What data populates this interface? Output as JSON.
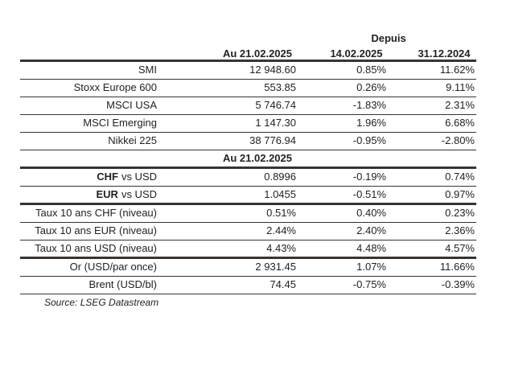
{
  "header": {
    "depuis": "Depuis",
    "columns": [
      "Au 21.02.2025",
      "14.02.2025",
      "31.12.2024"
    ]
  },
  "sections": [
    {
      "rows": [
        {
          "label": "SMI",
          "values": [
            "12 948.60",
            "0.85%",
            "11.62%"
          ]
        },
        {
          "label": "Stoxx Europe 600",
          "values": [
            "553.85",
            "0.26%",
            "9.11%"
          ]
        },
        {
          "label": "MSCI USA",
          "values": [
            "5 746.74",
            "-1.83%",
            "2.31%"
          ]
        },
        {
          "label": "MSCI Emerging",
          "values": [
            "1 147.30",
            "1.96%",
            "6.68%"
          ]
        },
        {
          "label": "Nikkei 225",
          "values": [
            "38 776.94",
            "-0.95%",
            "-2.80%"
          ]
        }
      ]
    },
    {
      "subheader": "Au 21.02.2025",
      "rows": [
        {
          "label_bold": "CHF",
          "label": "vs USD",
          "values": [
            "0.8996",
            "-0.19%",
            "0.74%"
          ]
        },
        {
          "label_bold": "EUR",
          "label": "vs USD",
          "values": [
            "1.0455",
            "-0.51%",
            "0.97%"
          ]
        }
      ]
    },
    {
      "rows": [
        {
          "label": "Taux 10 ans CHF (niveau)",
          "values": [
            "0.51%",
            "0.40%",
            "0.23%"
          ]
        },
        {
          "label": "Taux 10 ans EUR (niveau)",
          "values": [
            "2.44%",
            "2.40%",
            "2.36%"
          ]
        },
        {
          "label": "Taux 10 ans USD (niveau)",
          "values": [
            "4.43%",
            "4.48%",
            "4.57%"
          ]
        }
      ]
    },
    {
      "rows": [
        {
          "label": "Or (USD/par once)",
          "values": [
            "2 931.45",
            "1.07%",
            "11.66%"
          ]
        },
        {
          "label": "Brent (USD/bl)",
          "values": [
            "74.45",
            "-0.75%",
            "-0.39%"
          ]
        }
      ]
    }
  ],
  "source": "Source: LSEG Datastream"
}
